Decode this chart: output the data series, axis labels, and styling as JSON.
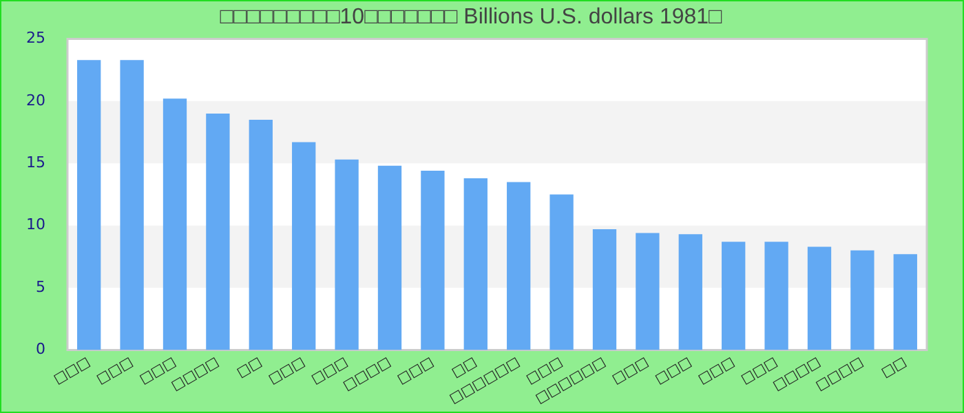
{
  "chart_data": {
    "type": "bar",
    "title": "□□□□□□□□□10□□□□□□□ Billions U.S. dollars 1981□",
    "categories": [
      "□□□",
      "□□□",
      "□□□",
      "□□□□",
      "□□",
      "□□□",
      "□□□",
      "□□□□",
      "□□□",
      "□□",
      "□□□□□□",
      "□□□",
      "□□□□□□",
      "□□□",
      "□□□",
      "□□□",
      "□□□",
      "□□□□",
      "□□□□",
      "□□"
    ],
    "values": [
      23.3,
      23.3,
      20.2,
      19.0,
      18.5,
      16.7,
      15.3,
      14.8,
      14.4,
      13.8,
      13.5,
      12.5,
      9.7,
      9.4,
      9.3,
      8.7,
      8.7,
      8.3,
      8.0,
      7.7
    ],
    "color": "#62a9f3",
    "ylim": [
      0,
      25
    ],
    "yticks": [
      0,
      5,
      10,
      15,
      20,
      25
    ],
    "legend": false,
    "bands": [
      {
        "axis": "y",
        "from": 5,
        "to": 10,
        "color": "#f3f3f3"
      },
      {
        "axis": "y",
        "from": 15,
        "to": 20,
        "color": "#f3f3f3"
      }
    ]
  }
}
